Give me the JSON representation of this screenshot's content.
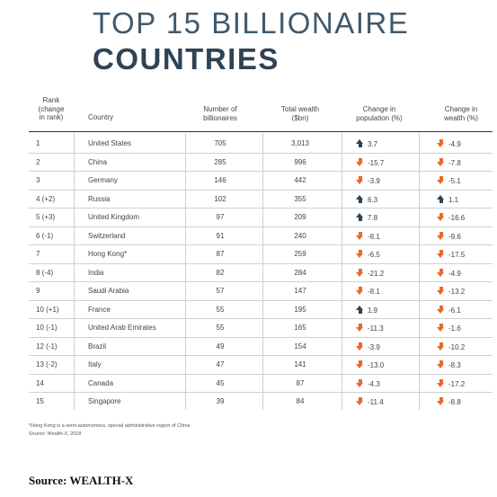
{
  "title": {
    "line1": "TOP 15 BILLIONAIRE",
    "line2": "COUNTRIES"
  },
  "headers": {
    "rank": [
      "Rank",
      "(change",
      "in rank)"
    ],
    "country": "Country",
    "billionaires": [
      "Number of",
      "billionaires"
    ],
    "wealth": [
      "Total wealth",
      "($bn)"
    ],
    "population_change": [
      "Change in",
      "population (%)"
    ],
    "wealth_change": [
      "Change in",
      "wealth (%)"
    ]
  },
  "rows": [
    {
      "rank": "1",
      "country": "United States",
      "billionaires": "705",
      "wealth": "3,013",
      "pop_dir": "up",
      "pop": "3.7",
      "wch_dir": "down",
      "wch": "-4.9"
    },
    {
      "rank": "2",
      "country": "China",
      "billionaires": "285",
      "wealth": "996",
      "pop_dir": "down",
      "pop": "-15.7",
      "wch_dir": "down",
      "wch": "-7.8"
    },
    {
      "rank": "3",
      "country": "Germany",
      "billionaires": "146",
      "wealth": "442",
      "pop_dir": "down",
      "pop": "-3.9",
      "wch_dir": "down",
      "wch": "-5.1"
    },
    {
      "rank": "4 (+2)",
      "country": "Russia",
      "billionaires": "102",
      "wealth": "355",
      "pop_dir": "up",
      "pop": "6.3",
      "wch_dir": "up",
      "wch": "1.1"
    },
    {
      "rank": "5 (+3)",
      "country": "United Kingdom",
      "billionaires": "97",
      "wealth": "209",
      "pop_dir": "up",
      "pop": "7.8",
      "wch_dir": "down",
      "wch": "-16.6"
    },
    {
      "rank": "6 (-1)",
      "country": "Switzerland",
      "billionaires": "91",
      "wealth": "240",
      "pop_dir": "down",
      "pop": "-8.1",
      "wch_dir": "down",
      "wch": "-9.6"
    },
    {
      "rank": "7",
      "country": "Hong Kong*",
      "billionaires": "87",
      "wealth": "259",
      "pop_dir": "down",
      "pop": "-6.5",
      "wch_dir": "down",
      "wch": "-17.5"
    },
    {
      "rank": "8 (-4)",
      "country": "India",
      "billionaires": "82",
      "wealth": "284",
      "pop_dir": "down",
      "pop": "-21.2",
      "wch_dir": "down",
      "wch": "-4.9"
    },
    {
      "rank": "9",
      "country": "Saudi Arabia",
      "billionaires": "57",
      "wealth": "147",
      "pop_dir": "down",
      "pop": "-8.1",
      "wch_dir": "down",
      "wch": "-13.2"
    },
    {
      "rank": "10 (+1)",
      "country": "France",
      "billionaires": "55",
      "wealth": "195",
      "pop_dir": "up",
      "pop": "1.9",
      "wch_dir": "down",
      "wch": "-6.1"
    },
    {
      "rank": "10 (-1)",
      "country": "United Arab Emirates",
      "billionaires": "55",
      "wealth": "165",
      "pop_dir": "down",
      "pop": "-11.3",
      "wch_dir": "down",
      "wch": "-1.6"
    },
    {
      "rank": "12 (-1)",
      "country": "Brazil",
      "billionaires": "49",
      "wealth": "154",
      "pop_dir": "down",
      "pop": "-3.9",
      "wch_dir": "down",
      "wch": "-10.2"
    },
    {
      "rank": "13 (-2)",
      "country": "Italy",
      "billionaires": "47",
      "wealth": "141",
      "pop_dir": "down",
      "pop": "-13.0",
      "wch_dir": "down",
      "wch": "-8.3"
    },
    {
      "rank": "14",
      "country": "Canada",
      "billionaires": "45",
      "wealth": "87",
      "pop_dir": "down",
      "pop": "-4.3",
      "wch_dir": "down",
      "wch": "-17.2"
    },
    {
      "rank": "15",
      "country": "Singapore",
      "billionaires": "39",
      "wealth": "84",
      "pop_dir": "down",
      "pop": "-11.4",
      "wch_dir": "down",
      "wch": "-8.8"
    }
  ],
  "footnotes": {
    "hong_kong": "*Hong Kong is a semi-autonomous, special administrative region of China",
    "source_small": "Source: Wealth-X, 2018"
  },
  "source": "Source:  WEALTH-X",
  "colors": {
    "up_arrow": "#2e4355",
    "down_arrow": "#e8692c",
    "title": "#2e4355"
  }
}
